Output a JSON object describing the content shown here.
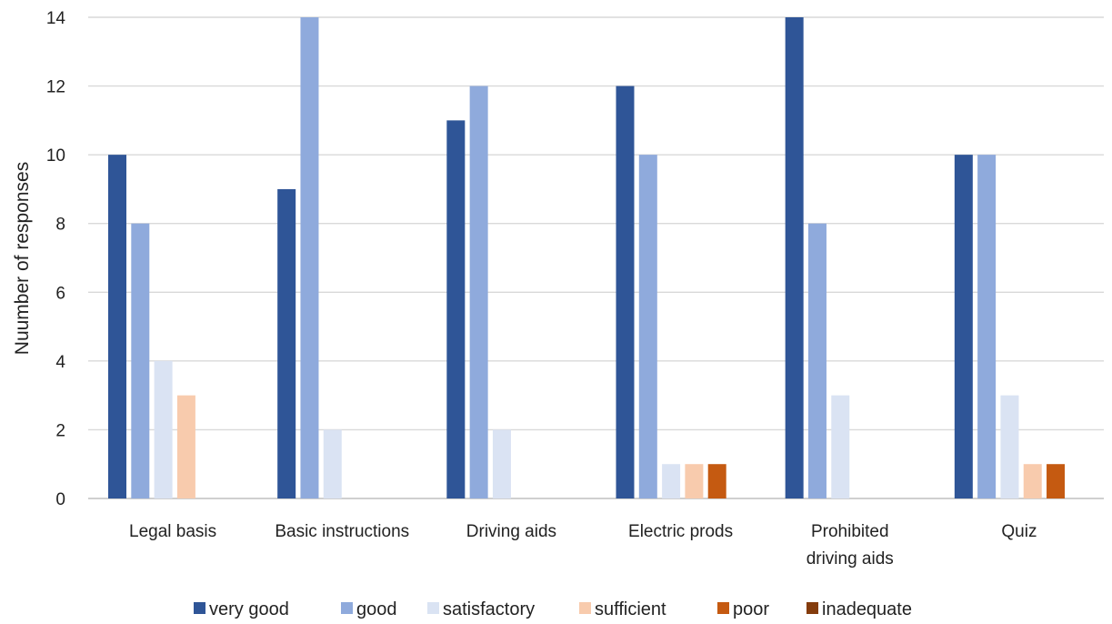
{
  "chart_data": {
    "type": "bar",
    "title": "",
    "xlabel": "",
    "ylabel": "Nuumber of responses",
    "ylim": [
      0,
      14
    ],
    "yticks": [
      0,
      2,
      4,
      6,
      8,
      10,
      12,
      14
    ],
    "grid": true,
    "legend_position": "bottom",
    "categories": [
      [
        "Legal basis"
      ],
      [
        "Basic instructions"
      ],
      [
        "Driving aids"
      ],
      [
        "Electric prods"
      ],
      [
        "Prohibited",
        "driving aids"
      ],
      [
        "Quiz"
      ]
    ],
    "series": [
      {
        "name": "very good",
        "color": "#2f5597",
        "values": [
          10,
          9,
          11,
          12,
          14,
          10
        ]
      },
      {
        "name": "good",
        "color": "#8faadc",
        "values": [
          8,
          14,
          12,
          10,
          8,
          10
        ]
      },
      {
        "name": "satisfactory",
        "color": "#dae3f3",
        "values": [
          4,
          2,
          2,
          1,
          3,
          3
        ]
      },
      {
        "name": "sufficient",
        "color": "#f8cbad",
        "values": [
          3,
          0,
          0,
          1,
          0,
          1
        ]
      },
      {
        "name": "poor",
        "color": "#c55a11",
        "values": [
          0,
          0,
          0,
          1,
          0,
          1
        ]
      },
      {
        "name": "inadequate",
        "color": "#843c0c",
        "values": [
          0,
          0,
          0,
          0,
          0,
          0
        ]
      }
    ]
  }
}
